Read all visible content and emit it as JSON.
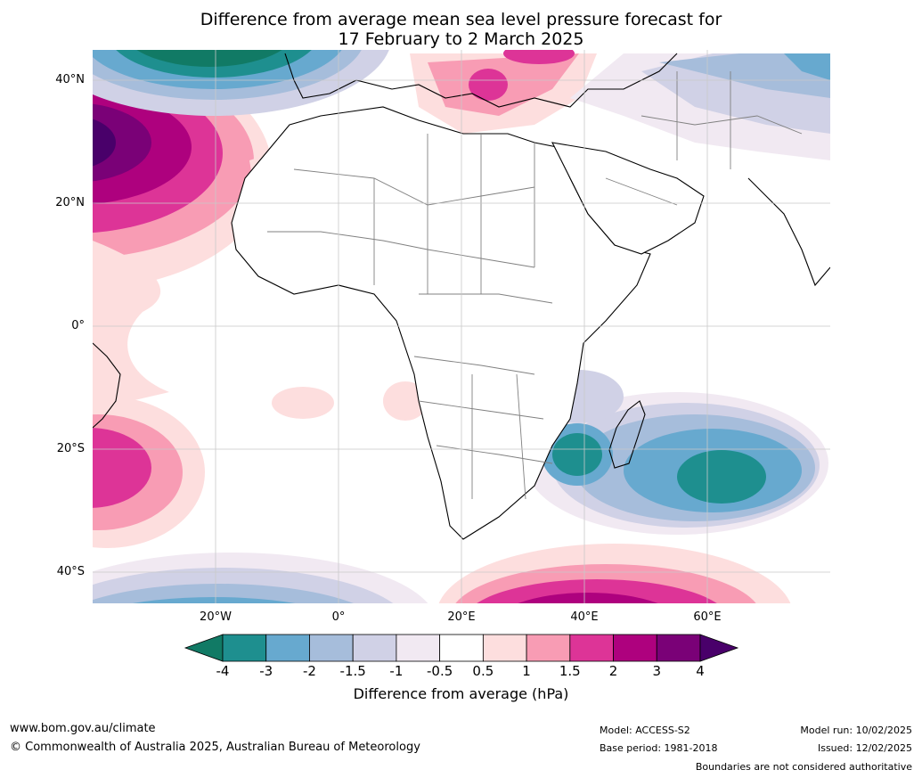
{
  "title": {
    "line1": "Difference from average mean sea level pressure forecast for",
    "line2": "17 February to 2 March 2025"
  },
  "map": {
    "lat_labels": [
      "40°N",
      "20°N",
      "0°",
      "20°S",
      "40°S"
    ],
    "lon_labels": [
      "20°W",
      "0°",
      "20°E",
      "40°E",
      "60°E"
    ],
    "colors": {
      "water": "#ffffff",
      "coast": "#000000",
      "borders": "#808080",
      "grid": "#c8c8c8"
    }
  },
  "colorbar": {
    "ticks": [
      "-4",
      "-3",
      "-2",
      "-1.5",
      "-1",
      "-0.5",
      "0.5",
      "1",
      "1.5",
      "2",
      "3",
      "4"
    ],
    "colors": [
      "#117a65",
      "#1e8f8f",
      "#67a9cf",
      "#a6bddb",
      "#d0d1e6",
      "#f1e9f2",
      "#ffffff",
      "#fddede",
      "#f89cb4",
      "#dd3497",
      "#ae017e",
      "#7a0177",
      "#49006a"
    ],
    "label": "Difference from average (hPa)"
  },
  "footer": {
    "url": "www.bom.gov.au/climate",
    "copyright": "© Commonwealth of Australia 2025, Australian Bureau of Meteorology",
    "model": "Model: ACCESS-S2",
    "base_period": "Base period: 1981-2018",
    "model_run": "Model run: 10/02/2025",
    "issued": "Issued: 12/02/2025",
    "disclaimer": "Boundaries are not considered authoritative"
  }
}
